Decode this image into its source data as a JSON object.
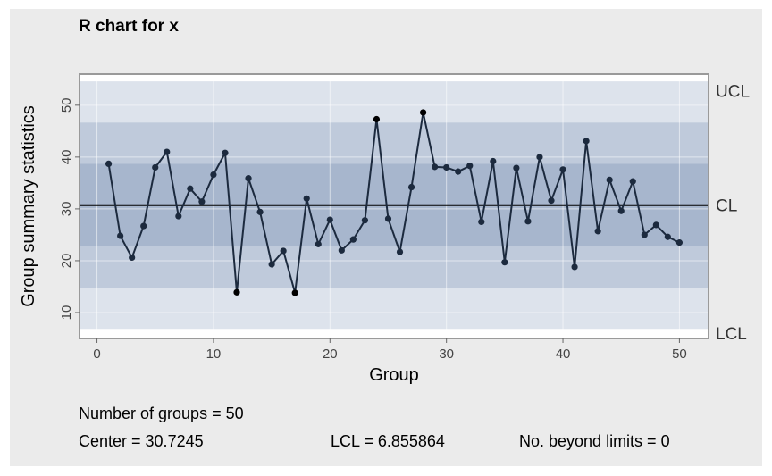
{
  "chart_data": {
    "type": "line",
    "title": "R chart for x",
    "xlabel": "Group",
    "ylabel": "Group summary statistics",
    "xlim": [
      -1.5,
      52.5
    ],
    "ylim": [
      5,
      56
    ],
    "x_ticks": [
      0,
      10,
      20,
      30,
      40,
      50
    ],
    "y_ticks": [
      10,
      20,
      30,
      40,
      50
    ],
    "grid": true,
    "center": 30.7245,
    "lcl": 6.855864,
    "ucl": 54.6,
    "limit_labels": {
      "ucl": "UCL",
      "cl": "CL",
      "lcl": "LCL"
    },
    "zones": [
      {
        "from": 6.855864,
        "to": 54.6,
        "color": "#dde3ec"
      },
      {
        "from": 14.81,
        "to": 46.64,
        "color": "#bfcadb"
      },
      {
        "from": 22.77,
        "to": 38.68,
        "color": "#a7b6cd"
      }
    ],
    "line_color": "#1c2a3e",
    "series": [
      {
        "x": [
          1,
          2,
          3,
          4,
          5,
          6,
          7,
          8,
          9,
          10,
          11,
          12,
          13,
          14,
          15,
          16,
          17,
          18,
          19,
          20,
          21,
          22,
          23,
          24,
          25,
          26,
          27,
          28,
          29,
          30,
          31,
          32,
          33,
          34,
          35,
          36,
          37,
          38,
          39,
          40,
          41,
          42,
          43,
          44,
          45,
          46,
          47,
          48,
          49,
          50
        ],
        "values": [
          38.7,
          24.8,
          20.6,
          26.7,
          38.0,
          41.0,
          28.6,
          33.9,
          31.4,
          36.6,
          40.8,
          13.9,
          35.9,
          29.4,
          19.3,
          21.9,
          13.8,
          32.0,
          23.2,
          27.9,
          22.0,
          24.1,
          27.8,
          47.3,
          28.1,
          21.7,
          34.2,
          48.6,
          38.1,
          38.0,
          37.2,
          38.3,
          27.5,
          39.2,
          19.7,
          37.9,
          27.6,
          40.0,
          31.6,
          37.6,
          18.8,
          43.1,
          25.7,
          35.6,
          29.6,
          35.3,
          25.0,
          26.9,
          24.6,
          23.5
        ]
      }
    ]
  },
  "stats": {
    "groups": "Number of groups = 50",
    "center": "Center = 30.7245",
    "lcl": "LCL = 6.855864",
    "beyond": "No. beyond limits = 0"
  }
}
